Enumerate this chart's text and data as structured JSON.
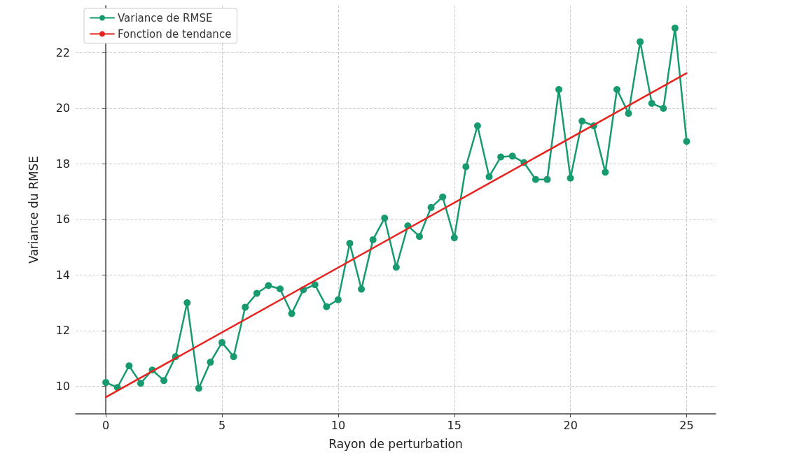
{
  "chart_data": {
    "type": "line",
    "xlabel": "Rayon de perturbation",
    "ylabel": "Variance du RMSE",
    "xlim": [
      -1.3,
      26.25
    ],
    "xticks": [
      0,
      5,
      10,
      15,
      20,
      25
    ],
    "ylim": [
      9,
      23.7
    ],
    "yticks": [
      10,
      12,
      14,
      16,
      18,
      20,
      22
    ],
    "grid": true,
    "legend": "top left",
    "marker": "circle",
    "series": [
      {
        "name": "Variance de RMSE",
        "color": "#189a70",
        "x": [
          0,
          0.5,
          1,
          1.5,
          2,
          2.5,
          3,
          3.5,
          4,
          4.5,
          5,
          5.5,
          6,
          6.5,
          7,
          7.5,
          8,
          8.5,
          9,
          9.5,
          10,
          10.5,
          11,
          11.5,
          12,
          12.5,
          13,
          13.5,
          14,
          14.5,
          15,
          15.5,
          16,
          16.5,
          17,
          17.5,
          18,
          18.5,
          19,
          19.5,
          20,
          20.5,
          21,
          21.5,
          22,
          22.5,
          23,
          23.5,
          24,
          24.5,
          25
        ],
        "values": [
          10.13,
          9.95,
          10.73,
          10.1,
          10.58,
          10.2,
          11.06,
          13.0,
          9.92,
          10.86,
          11.57,
          11.06,
          12.84,
          13.34,
          13.62,
          13.5,
          12.61,
          13.47,
          13.65,
          12.86,
          13.11,
          15.14,
          13.49,
          15.27,
          16.05,
          14.28,
          15.77,
          15.39,
          16.43,
          16.81,
          15.34,
          17.9,
          19.37,
          17.54,
          18.25,
          18.28,
          18.05,
          17.44,
          17.44,
          20.68,
          17.49,
          19.54,
          19.37,
          17.7,
          20.68,
          19.82,
          22.4,
          20.18,
          20.0,
          22.89,
          18.81
        ]
      },
      {
        "name": "Fonction de tendance",
        "color": "#e8231f",
        "marker": "none",
        "x": [
          0,
          25
        ],
        "values": [
          9.6,
          21.27
        ]
      }
    ]
  }
}
